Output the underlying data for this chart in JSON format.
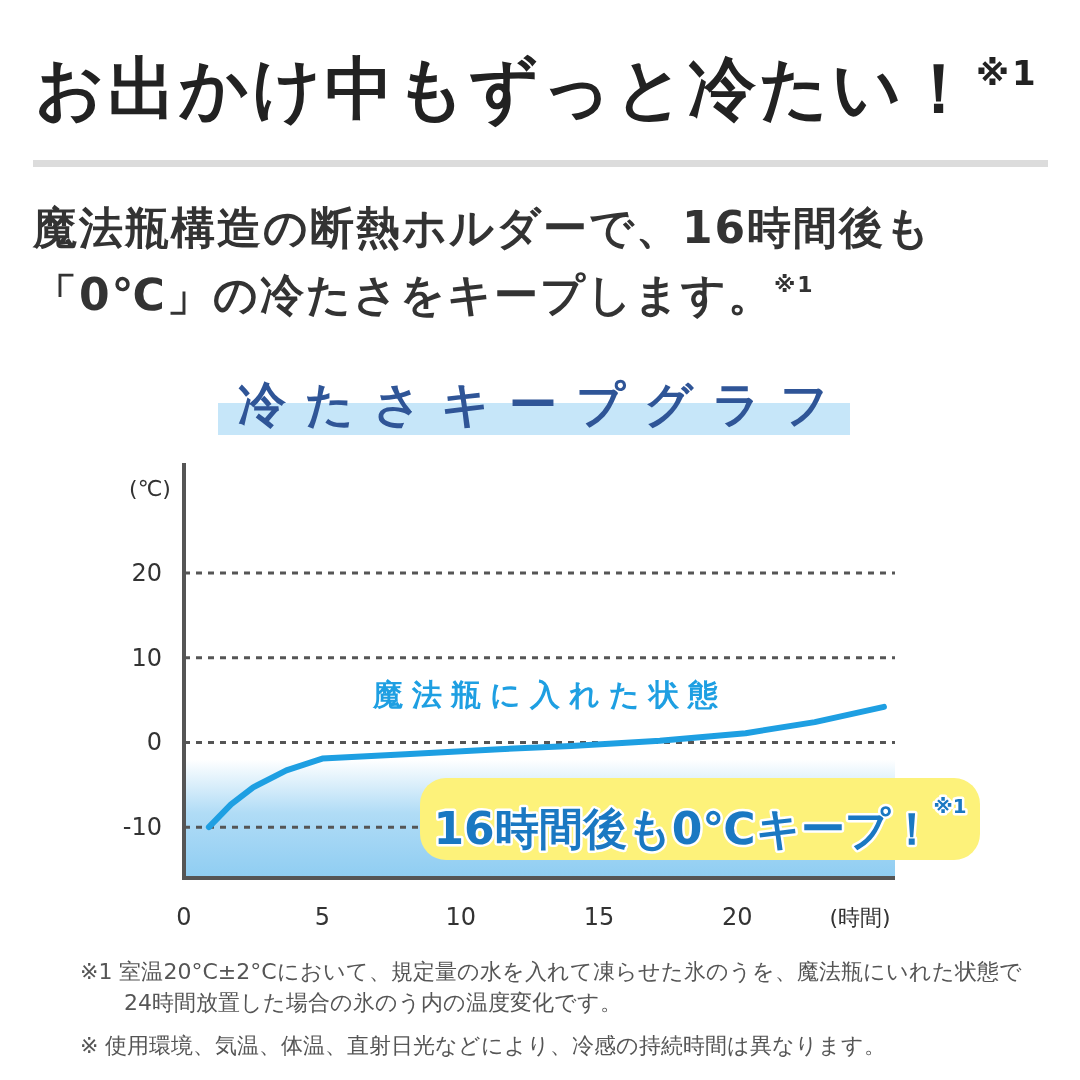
{
  "chart_data": {
    "type": "line",
    "title": "お出かけ中もずっと冷たい！$^{※1}$",
    "subtitle": "魔法瓶構造の断熱ホルダーで、16時間後も「0℃」の冷たさをキープします。$^{※1}$",
    "xlabel": "(時間)",
    "ylabel": "(℃)",
    "series": [
      {
        "name": "魔法瓶に入れた状態",
        "color": "#1e9fe2",
        "x": [
          0.9,
          1.7,
          2.5,
          3.7,
          5.0,
          8.0,
          11.4,
          14.0,
          17.2,
          20.3,
          22.8,
          25.3
        ],
        "values": [
          -10,
          -7.3,
          -5.3,
          -3.3,
          -1.9,
          -1.4,
          -0.8,
          -0.4,
          0.2,
          1.1,
          2.4,
          4.2
        ]
      }
    ],
    "xlim": [
      0,
      25.7
    ],
    "ylim": [
      -16,
      33
    ],
    "xticks": [
      0,
      5,
      10,
      15,
      20
    ],
    "yticks": [
      -10,
      0,
      10,
      20
    ],
    "grid": "y",
    "bands": [
      {
        "axis": "y",
        "from": -16,
        "to": -2,
        "color": "#8fcdf2"
      }
    ],
    "annotations": [
      "冷たさキープグラフ",
      "16時間後も0℃キープ！$^{※1}$",
      "※1 室温20°C±2°Cにおいて、規定量の水を入れて凍らせた氷のうを、魔法瓶にいれた状態で24時間放置した場合の氷のう内の温度変化です。",
      "※ 使用環境、気温、体温、直射日光などにより、冷感の持続時間は異なります。"
    ]
  }
}
